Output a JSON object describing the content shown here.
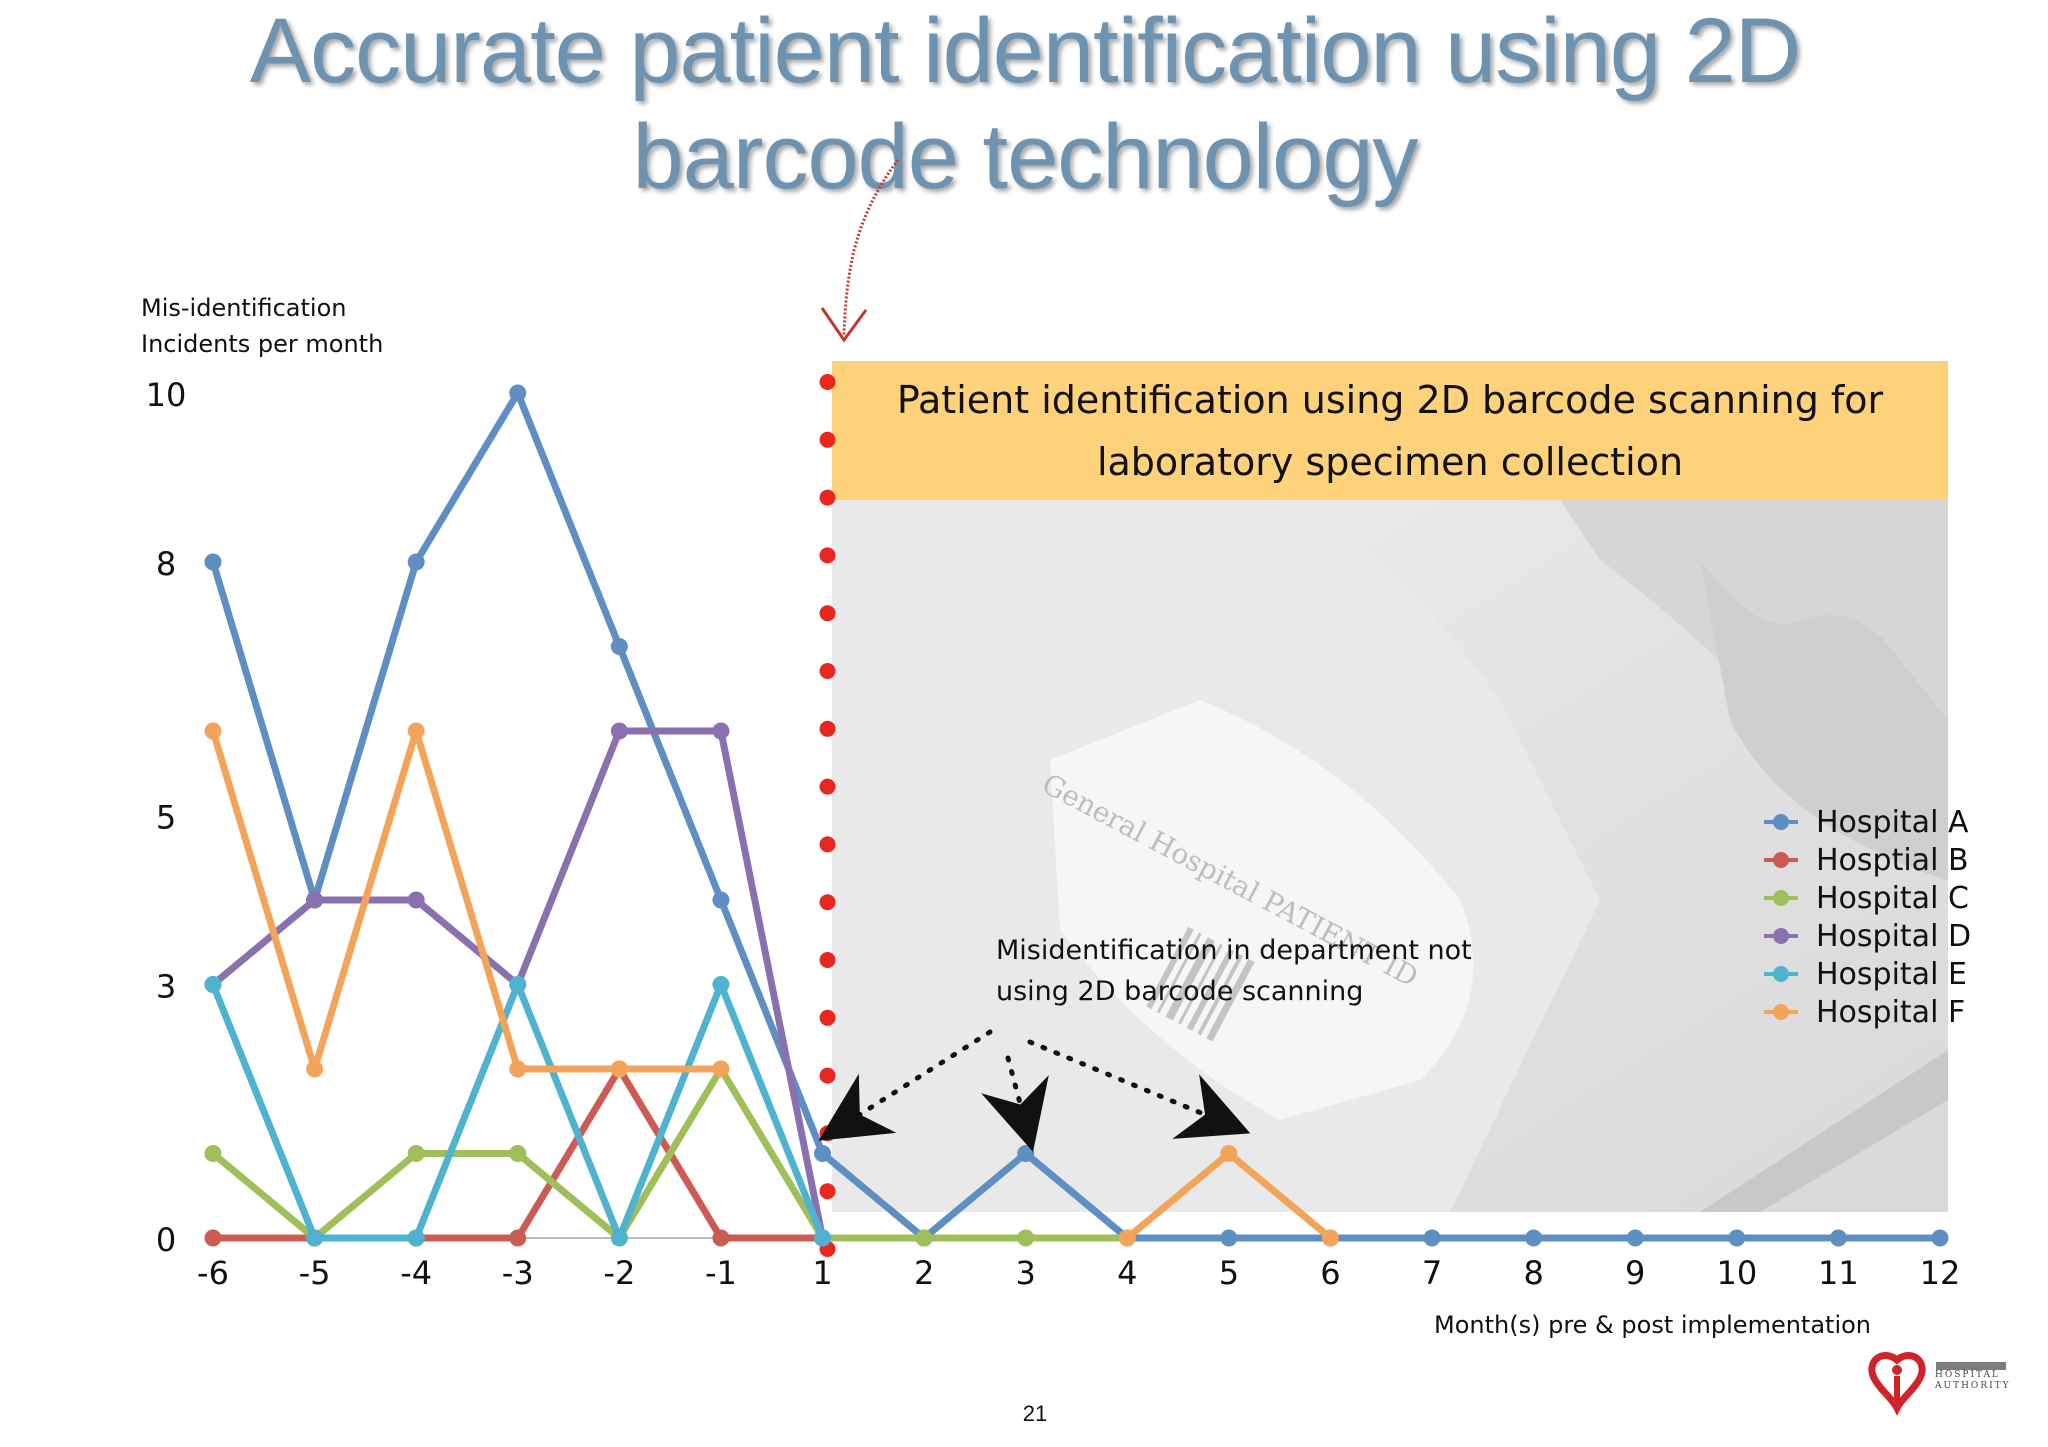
{
  "title": "Accurate patient identification using 2D barcode technology",
  "y_label_line1": "Mis-identification",
  "y_label_line2": "Incidents per month",
  "x_label": "Month(s) pre & post implementation",
  "banner_line1": "Patient identification using 2D barcode scanning for",
  "banner_line2": "laboratory specimen collection",
  "annotation_line1": "Misidentification in department not",
  "annotation_line2": "using 2D barcode scanning",
  "page_number": "21",
  "photo_label": "General Hospital PATIENT ID",
  "logo_text_line1": "HOSPITAL",
  "logo_text_line2": "AUTHORITY",
  "colors": {
    "implementation_marker": "#e8281e",
    "banner": "#fdd27a",
    "title": "#6d93b0"
  },
  "chart_data": {
    "type": "line",
    "x": [
      "-6",
      "-5",
      "-4",
      "-3",
      "-2",
      "-1",
      "1",
      "2",
      "3",
      "4",
      "5",
      "6",
      "7",
      "8",
      "9",
      "10",
      "11",
      "12"
    ],
    "y_ticks": [
      "0",
      "3",
      "5",
      "8",
      "10"
    ],
    "ylim": [
      0,
      10
    ],
    "grid": false,
    "legend_position": "right",
    "series": [
      {
        "name": "Hospital A",
        "color": "#5e8ec2",
        "values": [
          8,
          4,
          8,
          10,
          7,
          4,
          1,
          0,
          1,
          0,
          0,
          0,
          0,
          0,
          0,
          0,
          0,
          0
        ]
      },
      {
        "name": "Hosptial B",
        "color": "#cc5b54",
        "values": [
          0,
          0,
          0,
          0,
          2,
          0,
          0,
          0,
          null,
          null,
          null,
          null,
          null,
          null,
          null,
          null,
          null,
          null
        ]
      },
      {
        "name": "Hospital C",
        "color": "#9fbf5a",
        "values": [
          1,
          0,
          1,
          1,
          0,
          2,
          0,
          0,
          0,
          0,
          null,
          null,
          null,
          null,
          null,
          null,
          null,
          null
        ]
      },
      {
        "name": "Hospital D",
        "color": "#8b70b0",
        "values": [
          3,
          4,
          4,
          3,
          6,
          6,
          0,
          null,
          null,
          null,
          null,
          null,
          null,
          null,
          null,
          null,
          null,
          null
        ]
      },
      {
        "name": "Hospital E",
        "color": "#4fb3cf",
        "values": [
          3,
          0,
          0,
          3,
          0,
          3,
          0,
          null,
          null,
          null,
          null,
          null,
          null,
          null,
          null,
          null,
          null,
          null
        ]
      },
      {
        "name": "Hospital F",
        "color": "#f2a55a",
        "values": [
          6,
          2,
          6,
          2,
          2,
          2,
          null,
          null,
          null,
          0,
          1,
          0,
          null,
          null,
          null,
          null,
          null,
          null
        ]
      }
    ]
  }
}
